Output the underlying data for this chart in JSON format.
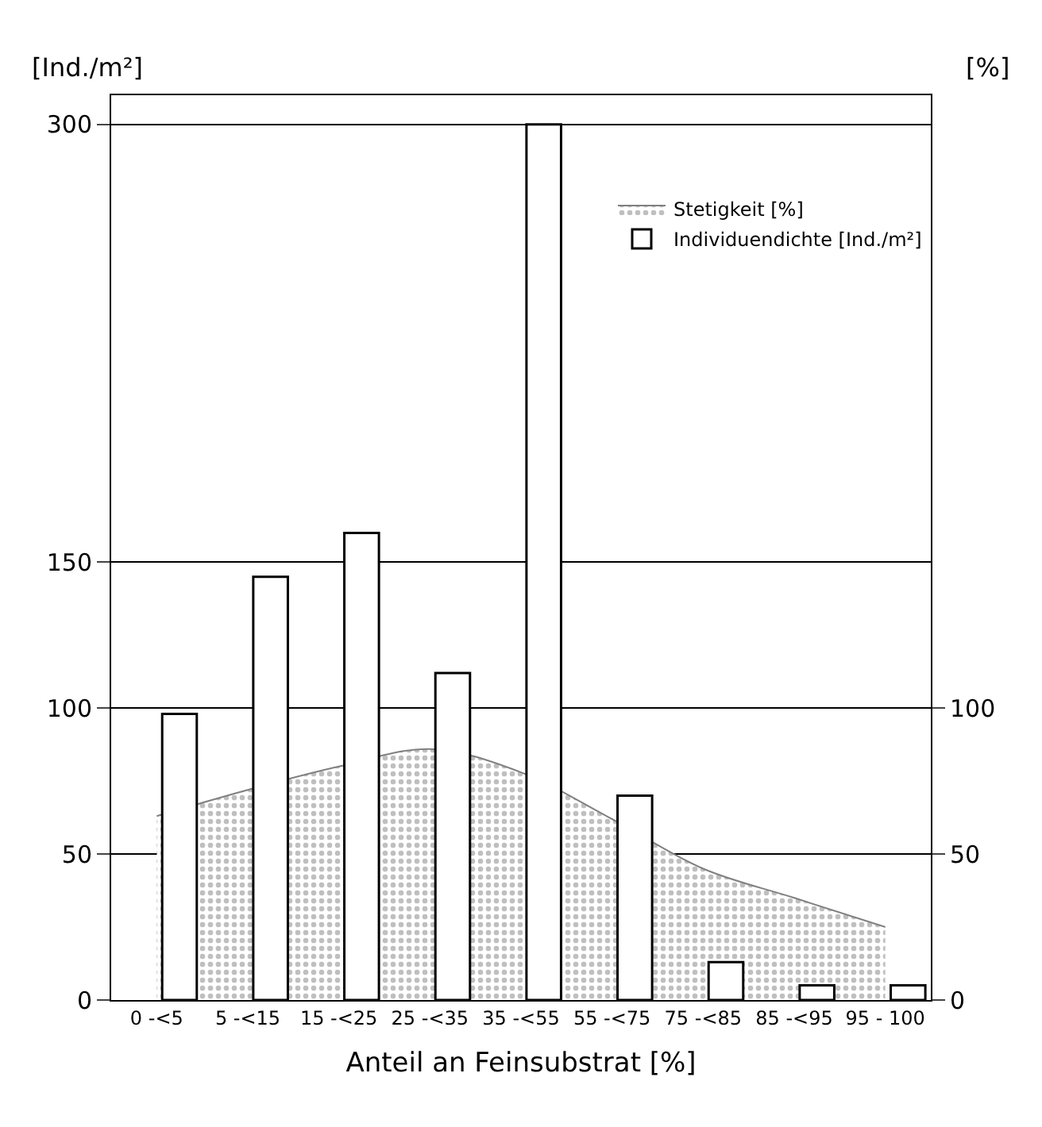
{
  "chart_data": {
    "type": "bar",
    "xlabel": "Anteil an Feinsubstrat [%]",
    "ylabel": "[Ind./m²]",
    "y2label": "[%]",
    "categories": [
      "0 -<5",
      "5 -<15",
      "15 -<25",
      "25 -<35",
      "35 -<55",
      "55 -<75",
      "75 -<85",
      "85 -<95",
      "95 - 100"
    ],
    "series": [
      {
        "name": "Stetigkeit [%]",
        "type": "area",
        "axis": "y2",
        "color": "#808080",
        "values": [
          63,
          72,
          80,
          86,
          78,
          62,
          45,
          35,
          25
        ]
      },
      {
        "name": "Individuendichte [Ind./m²]",
        "color": "#ffffff",
        "values": [
          98,
          145,
          160,
          112,
          300,
          70,
          13,
          5,
          5
        ]
      }
    ],
    "ylim": [
      0,
      310
    ],
    "yticks": [
      0,
      50,
      100,
      150,
      300
    ],
    "y2lim": [
      0,
      310
    ],
    "y2ticks": [
      0,
      50,
      100
    ],
    "grid": "y",
    "legend": "top right"
  }
}
